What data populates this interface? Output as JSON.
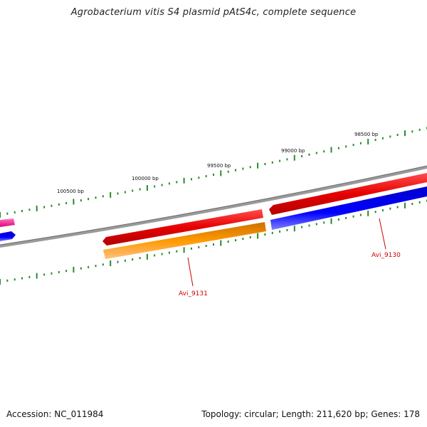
{
  "title": "Agrobacterium vitis S4 plasmid pAtS4c, complete sequence",
  "footer": {
    "accession": "Accession: NC_011984",
    "summary": "Topology: circular; Length: 211,620 bp; Genes: 178"
  },
  "scale_labels": [
    "100500 bp",
    "100000 bp",
    "99500 bp",
    "99000 bp",
    "98500 bp"
  ],
  "genes": [
    {
      "label": "Avi_9131",
      "color": "#ff9900"
    },
    {
      "label": "Avi_9130",
      "color": "#0000ff"
    }
  ],
  "colors": {
    "backbone": "#888888",
    "cds": "#ff0000",
    "orange_gene": "#ff9900",
    "blue_gene": "#0000ff",
    "pink_gene": "#ff3399",
    "tick": "#2a8a2a",
    "label": "#cc0000"
  }
}
